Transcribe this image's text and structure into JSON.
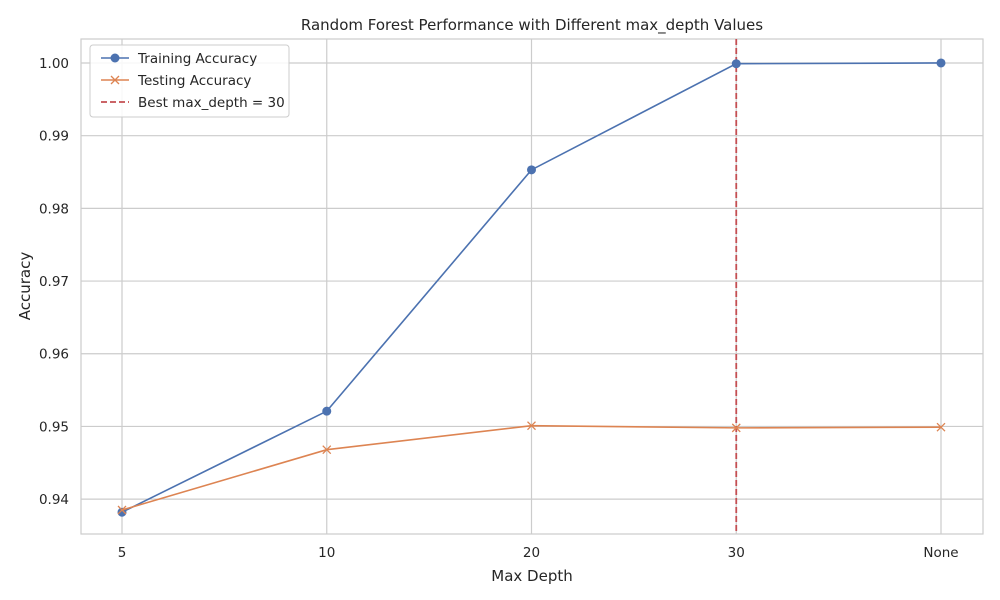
{
  "chart_data": {
    "type": "line",
    "title": "Random Forest Performance with Different max_depth Values",
    "xlabel": "Max Depth",
    "ylabel": "Accuracy",
    "categories": [
      "5",
      "10",
      "20",
      "30",
      "None"
    ],
    "ylim": [
      0.9352,
      1.0033
    ],
    "y_ticks": [
      0.94,
      0.95,
      0.96,
      0.97,
      0.98,
      0.99,
      1.0
    ],
    "y_tick_labels": [
      "0.94",
      "0.95",
      "0.96",
      "0.97",
      "0.98",
      "0.99",
      "1.00"
    ],
    "grid": true,
    "legend_position": "upper-left",
    "series": [
      {
        "name": "Training Accuracy",
        "values": [
          0.9382,
          0.9521,
          0.9853,
          0.9999,
          1.0
        ],
        "color": "#4c72b0",
        "marker": "circle"
      },
      {
        "name": "Testing Accuracy",
        "values": [
          0.9385,
          0.9468,
          0.9501,
          0.9498,
          0.9499
        ],
        "color": "#dd8452",
        "marker": "x"
      }
    ],
    "reference_line": {
      "label": "Best max_depth = 30",
      "category": "30",
      "color": "#c44e52",
      "style": "dashed"
    }
  }
}
